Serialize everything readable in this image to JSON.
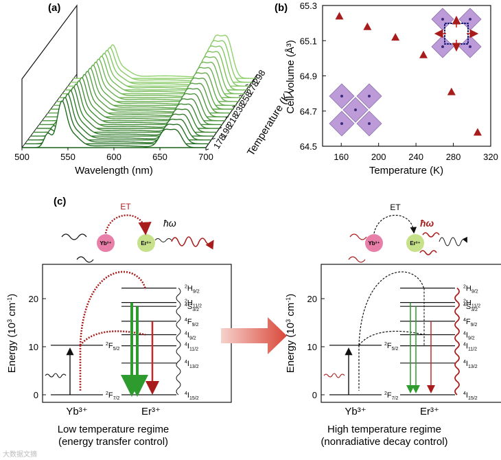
{
  "panels": {
    "a": "(a)",
    "b": "(b)",
    "c": "(c)"
  },
  "colors": {
    "green_dark": "#1f6b1f",
    "green_light": "#8fd16a",
    "red": "#a81c1c",
    "purple": "#a07cc4",
    "navy": "#1a237e"
  },
  "chart_data": [
    {
      "type": "line",
      "panel": "a",
      "title": "",
      "xlabel": "Wavelength (nm)",
      "zlabel": "Temperature (K)",
      "xticks": [
        "500",
        "550",
        "600",
        "650",
        "700"
      ],
      "xlim": [
        500,
        700
      ],
      "temperatures": [
        "178",
        "198",
        "218",
        "238",
        "258",
        "278",
        "298"
      ],
      "series_count": 19,
      "peaks_nm": [
        528,
        545,
        660
      ],
      "description_series": "upconversion emission spectra stacked by temperature"
    },
    {
      "type": "scatter",
      "panel": "b",
      "xlabel": "Temperature (K)",
      "ylabel": "Cell volume (Å³)",
      "xlim": [
        140,
        320
      ],
      "ylim": [
        64.5,
        65.3
      ],
      "xticks": [
        "160",
        "200",
        "240",
        "280",
        "320"
      ],
      "yticks": [
        "64.5",
        "64.7",
        "64.9",
        "65.1",
        "65.3"
      ],
      "points": [
        {
          "x": 158,
          "y": 65.24
        },
        {
          "x": 188,
          "y": 65.18
        },
        {
          "x": 218,
          "y": 65.12
        },
        {
          "x": 248,
          "y": 65.02
        },
        {
          "x": 278,
          "y": 64.81
        },
        {
          "x": 306,
          "y": 64.58
        }
      ]
    }
  ],
  "panel_c": {
    "et_label": "ET",
    "phonon_label": "ħω",
    "donor": "Yb³⁺",
    "acceptor": "Er³⁺",
    "yaxis_label": "Energy (10",
    "yaxis_exp": "3",
    "yaxis_unit": " cm",
    "yaxis_unit_exp": "-1",
    "yaxis_close": ")",
    "yticks": [
      "0",
      "10",
      "20"
    ],
    "yb_levels": [
      {
        "main": "2",
        "letter": "F",
        "sub": "5/2",
        "energy": 10.3
      },
      {
        "main": "2",
        "letter": "F",
        "sub": "7/2",
        "energy": 0
      }
    ],
    "er_levels": [
      {
        "main": "2",
        "letter": "H",
        "sub": "9/2",
        "energy": 22.2
      },
      {
        "main": "2",
        "letter": "H",
        "sub": "11/2",
        "energy": 19.2
      },
      {
        "main": "4",
        "letter": "S",
        "sub": "3/2",
        "energy": 18.4
      },
      {
        "main": "4",
        "letter": "F",
        "sub": "9/2",
        "energy": 15.3
      },
      {
        "main": "4",
        "letter": "I",
        "sub": "9/2",
        "energy": 12.5
      },
      {
        "main": "4",
        "letter": "I",
        "sub": "11/2",
        "energy": 10.2
      },
      {
        "main": "4",
        "letter": "I",
        "sub": "13/2",
        "energy": 6.6
      },
      {
        "main": "4",
        "letter": "I",
        "sub": "15/2",
        "energy": 0
      }
    ],
    "low": {
      "label_line1": "Low temperature regime",
      "label_line2": "(energy transfer control)"
    },
    "high": {
      "label_line1": "High temperature regime",
      "label_line2": "(nonradiative decay control)"
    }
  },
  "watermark": "大数据文摘"
}
